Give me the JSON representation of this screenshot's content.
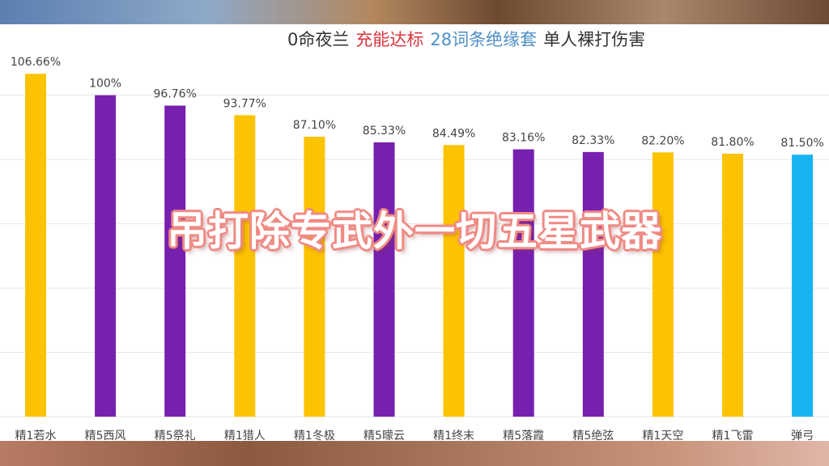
{
  "title": {
    "part1": "0命夜兰",
    "part2": "充能达标",
    "part3": "28词条绝缘套",
    "part4": "单人裸打伤害"
  },
  "title_colors": {
    "part1": "#333333",
    "part2": "#d8353e",
    "part3": "#4e8fc8",
    "part4": "#333333"
  },
  "overlay_text": "吊打除专武外一切五星武器",
  "colors": {
    "gold": "#fcc300",
    "purple": "#7620b0",
    "blue": "#18b4f2",
    "gridline": "#e6e6e6",
    "label": "#444444"
  },
  "chart_data": {
    "type": "bar",
    "categories": [
      "精1若水",
      "精5西风",
      "精5祭礼",
      "精1猎人",
      "精1冬极",
      "精5曚云",
      "精1终末",
      "精5落霞",
      "精5绝弦",
      "精1天空",
      "精1飞雷",
      "弹弓"
    ],
    "values": [
      106.66,
      100,
      96.76,
      93.77,
      87.1,
      85.33,
      84.49,
      83.16,
      82.33,
      82.2,
      81.8,
      81.5
    ],
    "value_labels": [
      "106.66%",
      "100%",
      "96.76%",
      "93.77%",
      "87.10%",
      "85.33%",
      "84.49%",
      "83.16%",
      "82.33%",
      "82.20%",
      "81.80%",
      "81.50%"
    ],
    "bar_colors": [
      "gold",
      "purple",
      "purple",
      "gold",
      "gold",
      "purple",
      "gold",
      "purple",
      "purple",
      "gold",
      "gold",
      "blue"
    ],
    "ylim": [
      0,
      112
    ],
    "grid": true,
    "xlabel": "",
    "ylabel": ""
  }
}
